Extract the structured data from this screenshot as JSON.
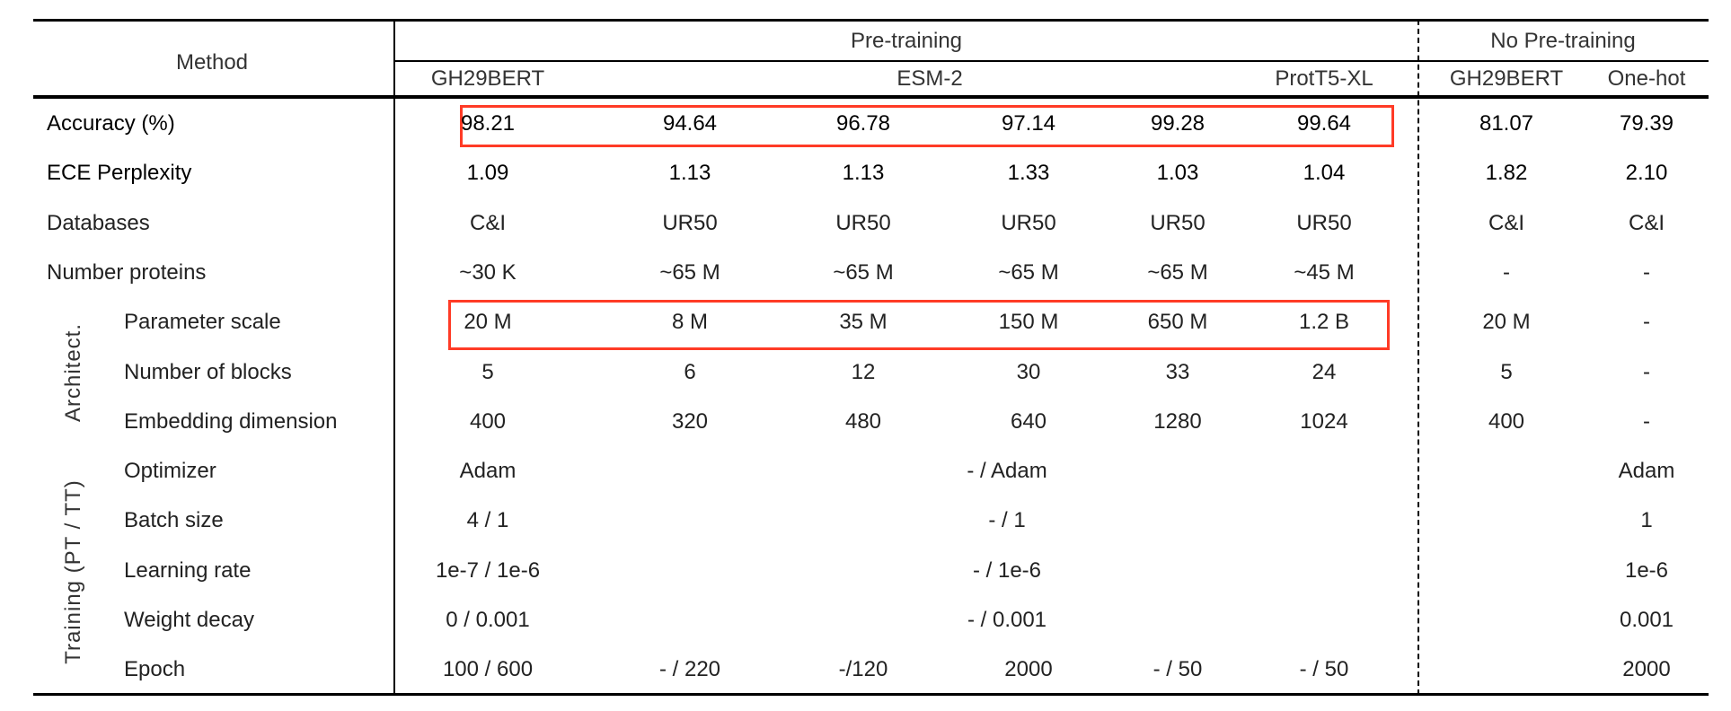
{
  "header": {
    "method": "Method",
    "pretraining": "Pre-training",
    "no_pretraining": "No Pre-training",
    "models": [
      "GH29BERT",
      "ESM-2",
      "ProtT5-XL",
      "GH29BERT",
      "One-hot"
    ]
  },
  "groups": {
    "architecture": "Architect.",
    "training": "Training (PT / TT)"
  },
  "highlight_color": "#ff3b26",
  "rows": [
    {
      "label": "Accuracy (%)",
      "values": [
        "98.21",
        "94.64",
        "96.78",
        "97.14",
        "99.28",
        "99.64",
        "81.07",
        "79.39"
      ],
      "highlighted": true
    },
    {
      "label": "ECE Perplexity",
      "values": [
        "1.09",
        "1.13",
        "1.13",
        "1.33",
        "1.03",
        "1.04",
        "1.82",
        "2.10"
      ]
    },
    {
      "label": "Databases",
      "values": [
        "C&I",
        "UR50",
        "UR50",
        "UR50",
        "UR50",
        "UR50",
        "C&I",
        "C&I"
      ]
    },
    {
      "label": "Number proteins",
      "values": [
        "~30 K",
        "~65 M",
        "~65 M",
        "~65 M",
        "~65 M",
        "~45 M",
        "-",
        "-"
      ]
    },
    {
      "label": "Parameter scale",
      "values": [
        "20 M",
        "8 M",
        "35 M",
        "150 M",
        "650 M",
        "1.2 B",
        "20 M",
        "-"
      ],
      "highlighted": true
    },
    {
      "label": "Number of blocks",
      "values": [
        "5",
        "6",
        "12",
        "30",
        "33",
        "24",
        "5",
        "-"
      ]
    },
    {
      "label": "Embedding dimension",
      "values": [
        "400",
        "320",
        "480",
        "640",
        "1280",
        "1024",
        "400",
        "-"
      ]
    },
    {
      "label": "Optimizer",
      "values": [
        "Adam",
        "- / Adam",
        "Adam"
      ]
    },
    {
      "label": "Batch size",
      "values": [
        "4 / 1",
        "- / 1",
        "1"
      ]
    },
    {
      "label": "Learning rate",
      "values": [
        "1e-7 / 1e-6",
        "- / 1e-6",
        "1e-6"
      ]
    },
    {
      "label": "Weight decay",
      "values": [
        "0 / 0.001",
        "- / 0.001",
        "0.001"
      ]
    },
    {
      "label": "Epoch",
      "values": [
        "100 / 600",
        "- / 220",
        "-/120",
        "2000",
        "- / 50",
        "- / 50",
        "",
        "2000"
      ]
    }
  ]
}
